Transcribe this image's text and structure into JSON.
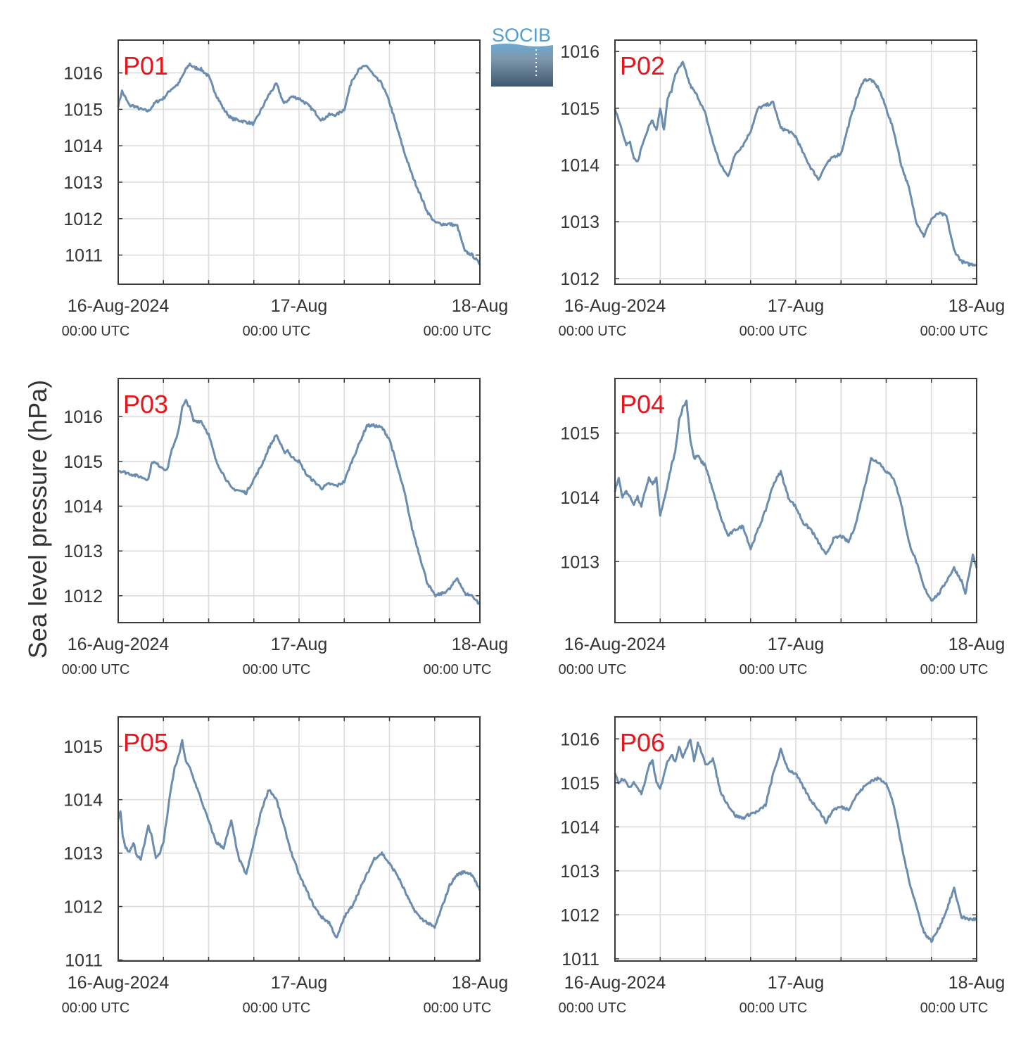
{
  "logo": {
    "text": "SOCIB",
    "colors": {
      "text": "#4f9fcf",
      "top": "#6aa9d3",
      "bottom": "#3f5870"
    }
  },
  "figure": {
    "ylabel": "Sea level pressure (hPa)",
    "line_color": "#6a8caf",
    "title_color": "#e8141c"
  },
  "xaxis": {
    "ticks": [
      {
        "value": 0,
        "label": "16-Aug-2024",
        "sublabel": "00:00 UTC"
      },
      {
        "value": 24,
        "label": "17-Aug",
        "sublabel": "00:00 UTC"
      },
      {
        "value": 48,
        "label": "18-Aug",
        "sublabel": "00:00 UTC"
      }
    ],
    "gridlines_hours": [
      6,
      12,
      18,
      24,
      30,
      36,
      42
    ],
    "unit": "hours since 16-Aug-2024 00:00 UTC"
  },
  "chart_data": [
    {
      "type": "line",
      "title": "P01",
      "xlim": [
        0,
        48
      ],
      "ylim": [
        1010.2,
        1016.9
      ],
      "yticks": [
        1011,
        1012,
        1013,
        1014,
        1015,
        1016
      ],
      "grid": true,
      "x": [
        0,
        0.5,
        1,
        1.5,
        2,
        3,
        4,
        5,
        6,
        7,
        8,
        9,
        9.5,
        10,
        11,
        12,
        13,
        14,
        15,
        16,
        17,
        18,
        19,
        20,
        21,
        22,
        23,
        24,
        25,
        26,
        27,
        28,
        29,
        30,
        31,
        32,
        33,
        34,
        35,
        36,
        37,
        38,
        39,
        40,
        41,
        42,
        43,
        44,
        45,
        46,
        47,
        48
      ],
      "values": [
        1015.1,
        1015.5,
        1015.3,
        1015.1,
        1015.1,
        1015.0,
        1014.95,
        1015.2,
        1015.3,
        1015.55,
        1015.7,
        1016.1,
        1016.25,
        1016.15,
        1016.1,
        1015.9,
        1015.4,
        1015.0,
        1014.75,
        1014.7,
        1014.65,
        1014.6,
        1015.0,
        1015.4,
        1015.7,
        1015.15,
        1015.35,
        1015.3,
        1015.15,
        1014.95,
        1014.7,
        1014.85,
        1014.85,
        1015.0,
        1015.8,
        1016.1,
        1016.2,
        1015.9,
        1015.7,
        1015.2,
        1014.5,
        1013.8,
        1013.2,
        1012.7,
        1012.2,
        1011.9,
        1011.85,
        1011.85,
        1011.8,
        1011.1,
        1011.0,
        1010.75
      ]
    },
    {
      "type": "line",
      "title": "P02",
      "xlim": [
        0,
        48
      ],
      "ylim": [
        1011.9,
        1016.2
      ],
      "yticks": [
        1012,
        1013,
        1014,
        1015,
        1016
      ],
      "grid": true,
      "x": [
        0,
        0.5,
        1,
        1.5,
        2,
        2.5,
        3,
        3.5,
        4,
        4.5,
        5,
        5.5,
        6,
        6.5,
        7,
        7.5,
        8,
        8.5,
        9,
        10,
        11,
        12,
        13,
        14,
        15,
        15.5,
        16,
        17,
        18,
        19,
        20,
        21,
        22,
        23,
        24,
        25,
        26,
        27,
        28,
        29,
        30,
        31,
        32,
        33,
        34,
        35,
        36,
        37,
        38,
        39,
        40,
        41,
        42,
        43,
        44,
        45,
        46,
        47,
        48
      ],
      "values": [
        1015.0,
        1014.8,
        1014.6,
        1014.35,
        1014.4,
        1014.1,
        1014.05,
        1014.3,
        1014.5,
        1014.7,
        1014.8,
        1014.6,
        1015.0,
        1014.6,
        1015.2,
        1015.3,
        1015.6,
        1015.7,
        1015.8,
        1015.4,
        1015.2,
        1014.9,
        1014.4,
        1014.0,
        1013.8,
        1014.0,
        1014.2,
        1014.35,
        1014.6,
        1015.0,
        1015.05,
        1015.1,
        1014.65,
        1014.6,
        1014.5,
        1014.2,
        1013.95,
        1013.75,
        1014.0,
        1014.15,
        1014.2,
        1014.7,
        1015.15,
        1015.5,
        1015.5,
        1015.35,
        1015.0,
        1014.6,
        1014.0,
        1013.6,
        1013.0,
        1012.75,
        1013.05,
        1013.15,
        1013.1,
        1012.5,
        1012.3,
        1012.25,
        1012.25
      ]
    },
    {
      "type": "line",
      "title": "P03",
      "xlim": [
        0,
        48
      ],
      "ylim": [
        1011.4,
        1016.85
      ],
      "yticks": [
        1012,
        1013,
        1014,
        1015,
        1016
      ],
      "grid": true,
      "x": [
        0,
        1,
        2,
        3,
        4,
        4.5,
        5,
        6,
        6.5,
        7,
        7.5,
        8,
        8.5,
        9,
        9.5,
        10,
        11,
        12,
        13,
        14,
        15,
        16,
        17,
        18,
        19,
        20,
        21,
        22,
        22.5,
        23,
        24,
        25,
        26,
        27,
        28,
        29,
        30,
        31,
        32,
        33,
        34,
        35,
        36,
        37,
        38,
        39,
        40,
        41,
        42,
        43,
        44,
        45,
        46,
        47,
        48
      ],
      "values": [
        1014.8,
        1014.75,
        1014.7,
        1014.65,
        1014.6,
        1015.0,
        1014.95,
        1014.85,
        1014.8,
        1015.2,
        1015.4,
        1015.7,
        1016.2,
        1016.35,
        1016.2,
        1015.9,
        1015.9,
        1015.6,
        1015.0,
        1014.7,
        1014.4,
        1014.35,
        1014.3,
        1014.6,
        1014.9,
        1015.3,
        1015.6,
        1015.2,
        1015.25,
        1015.1,
        1015.0,
        1014.7,
        1014.55,
        1014.4,
        1014.5,
        1014.45,
        1014.55,
        1015.0,
        1015.4,
        1015.8,
        1015.8,
        1015.75,
        1015.5,
        1014.9,
        1014.3,
        1013.5,
        1012.9,
        1012.3,
        1012.0,
        1012.05,
        1012.15,
        1012.4,
        1012.05,
        1012.0,
        1011.8
      ]
    },
    {
      "type": "line",
      "title": "P04",
      "xlim": [
        0,
        48
      ],
      "ylim": [
        1012.05,
        1015.85
      ],
      "yticks": [
        1013,
        1014,
        1015
      ],
      "grid": true,
      "x": [
        0,
        0.5,
        1,
        1.5,
        2,
        2.5,
        3,
        3.5,
        4,
        4.5,
        5,
        5.5,
        6,
        6.5,
        7,
        7.5,
        8,
        8.5,
        9,
        9.5,
        10,
        10.5,
        11,
        11.5,
        12,
        13,
        14,
        15,
        16,
        17,
        18,
        19,
        20,
        21,
        22,
        23,
        24,
        25,
        26,
        27,
        28,
        29,
        30,
        31,
        32,
        33,
        34,
        35,
        36,
        37,
        38,
        39,
        40,
        41,
        42,
        43,
        44,
        45,
        46,
        46.5,
        47,
        47.5,
        48
      ],
      "values": [
        1014.1,
        1014.3,
        1014.0,
        1014.1,
        1014.0,
        1013.9,
        1014.0,
        1013.85,
        1014.1,
        1014.3,
        1014.2,
        1014.3,
        1013.7,
        1013.95,
        1014.2,
        1014.5,
        1014.7,
        1015.2,
        1015.4,
        1015.5,
        1014.9,
        1014.6,
        1014.65,
        1014.55,
        1014.5,
        1014.1,
        1013.7,
        1013.4,
        1013.5,
        1013.55,
        1013.2,
        1013.5,
        1013.8,
        1014.2,
        1014.4,
        1014.0,
        1013.85,
        1013.6,
        1013.5,
        1013.3,
        1013.1,
        1013.35,
        1013.4,
        1013.3,
        1013.6,
        1014.1,
        1014.6,
        1014.55,
        1014.4,
        1014.3,
        1013.9,
        1013.3,
        1013.0,
        1012.6,
        1012.4,
        1012.5,
        1012.7,
        1012.9,
        1012.7,
        1012.5,
        1012.8,
        1013.1,
        1012.9
      ]
    },
    {
      "type": "line",
      "title": "P05",
      "xlim": [
        0,
        48
      ],
      "ylim": [
        1010.98,
        1015.55
      ],
      "yticks": [
        1011,
        1012,
        1013,
        1014,
        1015
      ],
      "grid": true,
      "x": [
        0,
        0.3,
        0.6,
        1,
        1.5,
        2,
        2.5,
        3,
        3.5,
        4,
        4.5,
        5,
        5.5,
        6,
        6.5,
        7,
        7.5,
        8,
        8.5,
        9,
        9.5,
        10,
        11,
        12,
        13,
        14,
        15,
        16,
        17,
        18,
        19,
        20,
        21,
        22,
        23,
        24,
        25,
        26,
        27,
        28,
        29,
        30,
        31,
        32,
        33,
        34,
        35,
        36,
        37,
        38,
        39,
        40,
        41,
        42,
        43,
        44,
        45,
        46,
        47,
        48
      ],
      "values": [
        1013.6,
        1013.8,
        1013.3,
        1013.1,
        1013.0,
        1013.2,
        1012.95,
        1012.9,
        1013.2,
        1013.5,
        1013.3,
        1012.9,
        1013.0,
        1013.2,
        1013.7,
        1014.2,
        1014.6,
        1014.8,
        1015.1,
        1014.7,
        1014.6,
        1014.4,
        1014.0,
        1013.6,
        1013.2,
        1013.1,
        1013.6,
        1012.9,
        1012.6,
        1013.2,
        1013.8,
        1014.2,
        1014.0,
        1013.5,
        1013.0,
        1012.6,
        1012.3,
        1012.0,
        1011.8,
        1011.7,
        1011.4,
        1011.8,
        1012.0,
        1012.3,
        1012.6,
        1012.9,
        1013.0,
        1012.8,
        1012.6,
        1012.3,
        1012.0,
        1011.8,
        1011.7,
        1011.6,
        1012.0,
        1012.4,
        1012.6,
        1012.65,
        1012.6,
        1012.3
      ]
    },
    {
      "type": "line",
      "title": "P06",
      "xlim": [
        0,
        48
      ],
      "ylim": [
        1010.95,
        1016.5
      ],
      "yticks": [
        1011,
        1012,
        1013,
        1014,
        1015,
        1016
      ],
      "grid": true,
      "x": [
        0,
        0.5,
        1,
        1.5,
        2,
        2.5,
        3,
        3.5,
        4,
        4.5,
        5,
        5.5,
        6,
        6.5,
        7,
        7.5,
        8,
        8.5,
        9,
        9.5,
        10,
        10.5,
        11,
        11.5,
        12,
        13,
        14,
        15,
        16,
        17,
        18,
        19,
        20,
        21,
        22,
        23,
        24,
        25,
        26,
        27,
        28,
        29,
        30,
        31,
        32,
        33,
        34,
        35,
        36,
        37,
        38,
        39,
        40,
        41,
        42,
        43,
        44,
        45,
        46,
        47,
        48
      ],
      "values": [
        1015.2,
        1015.0,
        1015.1,
        1015.0,
        1014.9,
        1015.0,
        1014.9,
        1014.75,
        1015.0,
        1015.4,
        1015.5,
        1015.0,
        1014.85,
        1015.2,
        1015.5,
        1015.65,
        1015.5,
        1015.8,
        1015.6,
        1015.8,
        1016.0,
        1015.5,
        1015.9,
        1015.7,
        1015.4,
        1015.55,
        1014.8,
        1014.5,
        1014.25,
        1014.2,
        1014.3,
        1014.35,
        1014.5,
        1015.2,
        1015.75,
        1015.3,
        1015.2,
        1014.9,
        1014.6,
        1014.4,
        1014.1,
        1014.4,
        1014.45,
        1014.4,
        1014.7,
        1014.9,
        1015.05,
        1015.1,
        1015.0,
        1014.5,
        1013.6,
        1012.8,
        1012.2,
        1011.6,
        1011.4,
        1011.7,
        1012.1,
        1012.6,
        1011.95,
        1011.9,
        1011.9
      ]
    }
  ]
}
